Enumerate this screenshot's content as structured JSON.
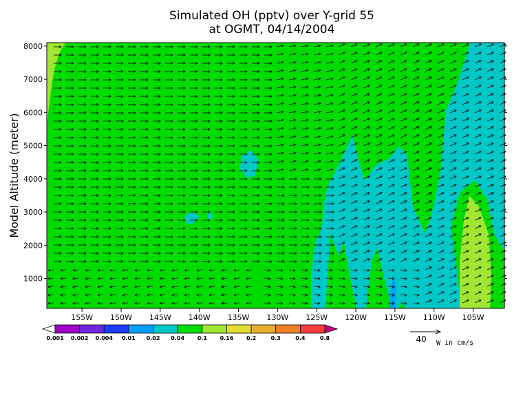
{
  "chart_data": {
    "type": "contour+vector",
    "title_line1": "Simulated OH (pptv) over Y-grid 55",
    "title_line2": "at OGMT, 04/14/2004",
    "ylabel": "Model Altitude (meter)",
    "xlabel": "",
    "x_range_deg_w": [
      159.5,
      101
    ],
    "ylim": [
      100,
      8100
    ],
    "x_ticks": [
      "155W",
      "150W",
      "145W",
      "140W",
      "135W",
      "130W",
      "125W",
      "120W",
      "115W",
      "110W",
      "105W"
    ],
    "x_tick_values_deg_w": [
      155,
      150,
      145,
      140,
      135,
      130,
      125,
      120,
      115,
      110,
      105
    ],
    "y_ticks": [
      1000,
      2000,
      3000,
      4000,
      5000,
      6000,
      7000,
      8000
    ],
    "colorbar": {
      "levels": [
        "0.001",
        "0.002",
        "0.004",
        "0.01",
        "0.02",
        "0.04",
        "0.1",
        "0.16",
        "0.2",
        "0.3",
        "0.4",
        "0.8"
      ],
      "colors": [
        "#ffffff",
        "#a000c8",
        "#6e28dc",
        "#1e3cff",
        "#00a0ff",
        "#00c8c8",
        "#00dc00",
        "#a0e632",
        "#e6dc32",
        "#e6af2d",
        "#f08228",
        "#fa3c3c",
        "#c80082"
      ]
    },
    "field_colors": {
      "low": "#00c8c8",
      "mid": "#00dc00",
      "high": "#a0e632"
    },
    "reference_vector": {
      "value": "40",
      "unit_label": "W in cm/s"
    }
  }
}
